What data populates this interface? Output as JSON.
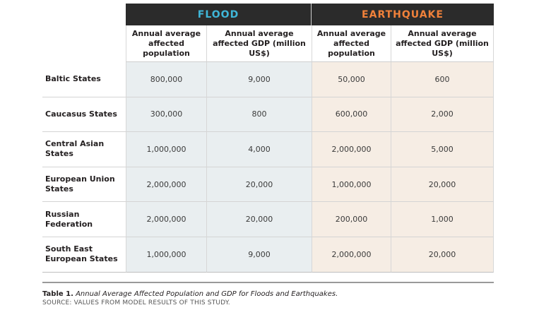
{
  "hazards": {
    "flood": "FLOOD",
    "earthquake": "EARTHQUAKE"
  },
  "colors": {
    "flood_accent": "#3fb6d8",
    "earthquake_accent": "#f0813a",
    "header_band": "#2b2b2b",
    "flood_fill": "#e9eef0",
    "earthquake_fill": "#f6ede4"
  },
  "columns": {
    "flood_population": "Annual average affected population",
    "flood_gdp": "Annual average affected GDP (million US$)",
    "eq_population": "Annual average affected population",
    "eq_gdp": "Annual average affected GDP (million US$)"
  },
  "rows": [
    {
      "region": "Baltic States",
      "flood_pop": "800,000",
      "flood_gdp": "9,000",
      "eq_pop": "50,000",
      "eq_gdp": "600"
    },
    {
      "region": "Caucasus States",
      "flood_pop": "300,000",
      "flood_gdp": "800",
      "eq_pop": "600,000",
      "eq_gdp": "2,000"
    },
    {
      "region": "Central Asian States",
      "flood_pop": "1,000,000",
      "flood_gdp": "4,000",
      "eq_pop": "2,000,000",
      "eq_gdp": "5,000"
    },
    {
      "region": "European Union States",
      "flood_pop": "2,000,000",
      "flood_gdp": "20,000",
      "eq_pop": "1,000,000",
      "eq_gdp": "20,000"
    },
    {
      "region": "Russian Federation",
      "flood_pop": "2,000,000",
      "flood_gdp": "20,000",
      "eq_pop": "200,000",
      "eq_gdp": "1,000"
    },
    {
      "region": "South East European States",
      "flood_pop": "1,000,000",
      "flood_gdp": "9,000",
      "eq_pop": "2,000,000",
      "eq_gdp": "20,000"
    }
  ],
  "caption": {
    "label": "Table 1.",
    "text": "Annual Average Affected Population and GDP for Floods and Earthquakes.",
    "source": "SOURCE: VALUES FROM MODEL RESULTS OF THIS STUDY."
  }
}
